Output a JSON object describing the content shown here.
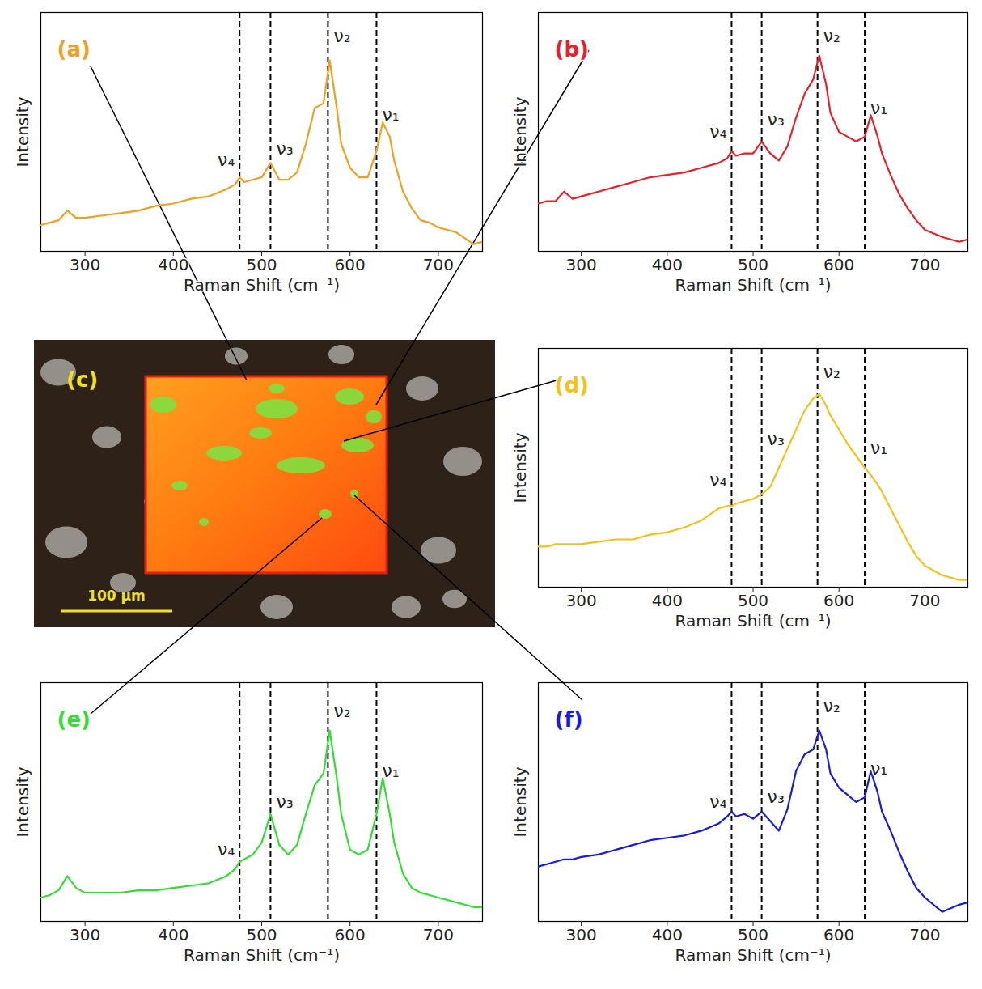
{
  "chart_data": [
    {
      "type": "line",
      "title": "(a)",
      "color": "#f0a020",
      "x_label": "Raman Shift (cm⁻¹)",
      "y_label": "Intensity",
      "xlim": [
        250,
        750
      ],
      "xticks": [
        300,
        400,
        500,
        600,
        700
      ],
      "ylim": [
        0,
        1
      ],
      "yticks": [],
      "tick_labels": "x",
      "x": [
        250,
        260,
        270,
        280,
        290,
        300,
        320,
        340,
        360,
        380,
        400,
        420,
        440,
        460,
        470,
        475,
        480,
        490,
        500,
        510,
        520,
        530,
        540,
        550,
        560,
        570,
        577,
        585,
        590,
        600,
        610,
        620,
        630,
        637,
        645,
        650,
        660,
        670,
        680,
        690,
        700,
        720,
        740,
        750
      ],
      "values": [
        0.11,
        0.12,
        0.13,
        0.17,
        0.14,
        0.14,
        0.15,
        0.16,
        0.17,
        0.19,
        0.2,
        0.22,
        0.23,
        0.26,
        0.28,
        0.31,
        0.29,
        0.3,
        0.31,
        0.37,
        0.3,
        0.3,
        0.33,
        0.45,
        0.6,
        0.62,
        0.8,
        0.6,
        0.45,
        0.35,
        0.31,
        0.31,
        0.42,
        0.54,
        0.48,
        0.38,
        0.25,
        0.18,
        0.13,
        0.12,
        0.1,
        0.08,
        0.03,
        0.04
      ],
      "annotations": [
        {
          "x": 475,
          "y": 0.38,
          "label": "ν₄"
        },
        {
          "x": 510,
          "y": 0.43,
          "label": "ν₃"
        },
        {
          "x": 575,
          "y": 0.9,
          "label": "ν₂"
        },
        {
          "x": 630,
          "y": 0.57,
          "label": "ν₁"
        }
      ]
    },
    {
      "type": "line",
      "title": "(b)",
      "color": "#e8202a",
      "x_label": "Raman Shift (cm⁻¹)",
      "y_label": "Intensity",
      "xlim": [
        250,
        750
      ],
      "xticks": [
        300,
        400,
        500,
        600,
        700
      ],
      "ylim": [
        0,
        1
      ],
      "yticks": [],
      "tick_labels": "x",
      "x": [
        250,
        260,
        270,
        280,
        290,
        300,
        320,
        340,
        360,
        380,
        400,
        420,
        440,
        460,
        470,
        475,
        480,
        490,
        500,
        510,
        520,
        530,
        540,
        550,
        560,
        570,
        577,
        585,
        590,
        600,
        610,
        620,
        630,
        637,
        645,
        650,
        660,
        670,
        680,
        690,
        700,
        720,
        740,
        750
      ],
      "values": [
        0.2,
        0.21,
        0.21,
        0.25,
        0.22,
        0.23,
        0.25,
        0.27,
        0.29,
        0.31,
        0.32,
        0.33,
        0.35,
        0.37,
        0.39,
        0.42,
        0.4,
        0.41,
        0.41,
        0.46,
        0.41,
        0.38,
        0.44,
        0.56,
        0.66,
        0.72,
        0.82,
        0.7,
        0.58,
        0.5,
        0.48,
        0.46,
        0.48,
        0.57,
        0.48,
        0.41,
        0.32,
        0.24,
        0.18,
        0.13,
        0.09,
        0.06,
        0.04,
        0.05
      ],
      "annotations": [
        {
          "x": 475,
          "y": 0.5,
          "label": "ν₄"
        },
        {
          "x": 510,
          "y": 0.55,
          "label": "ν₃"
        },
        {
          "x": 575,
          "y": 0.9,
          "label": "ν₂"
        },
        {
          "x": 630,
          "y": 0.6,
          "label": "ν₁"
        }
      ]
    },
    {
      "type": "image",
      "title": "(c)",
      "annotations": [
        "100 µm"
      ]
    },
    {
      "type": "line",
      "title": "(d)",
      "color": "#f2c21a",
      "x_label": "Raman Shift (cm⁻¹)",
      "y_label": "Intensity",
      "xlim": [
        250,
        750
      ],
      "xticks": [
        300,
        400,
        500,
        600,
        700
      ],
      "ylim": [
        0,
        1
      ],
      "yticks": [],
      "tick_labels": "x",
      "x": [
        250,
        260,
        270,
        280,
        290,
        300,
        320,
        340,
        360,
        380,
        400,
        420,
        440,
        460,
        470,
        475,
        480,
        490,
        500,
        510,
        520,
        530,
        540,
        550,
        560,
        570,
        577,
        585,
        590,
        600,
        610,
        620,
        630,
        637,
        645,
        650,
        660,
        670,
        680,
        690,
        700,
        720,
        740,
        750
      ],
      "values": [
        0.17,
        0.17,
        0.18,
        0.18,
        0.18,
        0.18,
        0.19,
        0.2,
        0.2,
        0.22,
        0.23,
        0.25,
        0.28,
        0.33,
        0.34,
        0.34,
        0.35,
        0.36,
        0.37,
        0.39,
        0.42,
        0.5,
        0.58,
        0.66,
        0.74,
        0.79,
        0.81,
        0.76,
        0.72,
        0.66,
        0.6,
        0.55,
        0.5,
        0.47,
        0.43,
        0.4,
        0.33,
        0.26,
        0.19,
        0.13,
        0.09,
        0.05,
        0.03,
        0.03
      ],
      "annotations": [
        {
          "x": 475,
          "y": 0.45,
          "label": "ν₄"
        },
        {
          "x": 510,
          "y": 0.62,
          "label": "ν₃"
        },
        {
          "x": 575,
          "y": 0.9,
          "label": "ν₂"
        },
        {
          "x": 630,
          "y": 0.58,
          "label": "ν₁"
        }
      ]
    },
    {
      "type": "line",
      "title": "(e)",
      "color": "#33dd33",
      "x_label": "Raman Shift (cm⁻¹)",
      "y_label": "Intensity",
      "xlim": [
        250,
        750
      ],
      "xticks": [
        300,
        400,
        500,
        600,
        700
      ],
      "ylim": [
        0,
        1
      ],
      "yticks": [],
      "tick_labels": "x",
      "x": [
        250,
        260,
        270,
        280,
        290,
        300,
        320,
        340,
        360,
        380,
        400,
        420,
        440,
        460,
        470,
        475,
        480,
        490,
        500,
        510,
        520,
        530,
        540,
        550,
        560,
        570,
        577,
        585,
        590,
        600,
        610,
        620,
        630,
        637,
        645,
        650,
        660,
        670,
        680,
        690,
        700,
        720,
        740,
        750
      ],
      "values": [
        0.1,
        0.11,
        0.13,
        0.19,
        0.14,
        0.12,
        0.12,
        0.12,
        0.13,
        0.13,
        0.14,
        0.15,
        0.16,
        0.19,
        0.22,
        0.25,
        0.26,
        0.28,
        0.33,
        0.45,
        0.32,
        0.28,
        0.32,
        0.45,
        0.57,
        0.62,
        0.8,
        0.6,
        0.45,
        0.3,
        0.28,
        0.3,
        0.45,
        0.6,
        0.45,
        0.33,
        0.2,
        0.14,
        0.12,
        0.11,
        0.1,
        0.08,
        0.06,
        0.06
      ],
      "annotations": [
        {
          "x": 475,
          "y": 0.3,
          "label": "ν₄"
        },
        {
          "x": 510,
          "y": 0.5,
          "label": "ν₃"
        },
        {
          "x": 575,
          "y": 0.88,
          "label": "ν₂"
        },
        {
          "x": 630,
          "y": 0.63,
          "label": "ν₁"
        }
      ]
    },
    {
      "type": "line",
      "title": "(f)",
      "color": "#1a1adf",
      "x_label": "Raman Shift (cm⁻¹)",
      "y_label": "Intensity",
      "xlim": [
        250,
        750
      ],
      "xticks": [
        300,
        400,
        500,
        600,
        700
      ],
      "ylim": [
        0,
        1
      ],
      "yticks": [],
      "tick_labels": "x",
      "x": [
        250,
        260,
        270,
        280,
        290,
        300,
        320,
        340,
        360,
        380,
        400,
        420,
        440,
        460,
        470,
        475,
        480,
        490,
        500,
        510,
        520,
        530,
        540,
        550,
        560,
        570,
        577,
        585,
        590,
        600,
        610,
        620,
        630,
        637,
        645,
        650,
        660,
        670,
        680,
        690,
        700,
        720,
        740,
        750
      ],
      "values": [
        0.23,
        0.24,
        0.25,
        0.26,
        0.26,
        0.27,
        0.28,
        0.3,
        0.32,
        0.34,
        0.35,
        0.36,
        0.38,
        0.41,
        0.44,
        0.46,
        0.44,
        0.45,
        0.43,
        0.46,
        0.42,
        0.38,
        0.47,
        0.63,
        0.7,
        0.72,
        0.8,
        0.72,
        0.62,
        0.56,
        0.53,
        0.5,
        0.52,
        0.63,
        0.54,
        0.46,
        0.38,
        0.29,
        0.21,
        0.14,
        0.1,
        0.04,
        0.07,
        0.08
      ],
      "annotations": [
        {
          "x": 475,
          "y": 0.5,
          "label": "ν₄"
        },
        {
          "x": 510,
          "y": 0.52,
          "label": "ν₃"
        },
        {
          "x": 575,
          "y": 0.9,
          "label": "ν₂"
        },
        {
          "x": 630,
          "y": 0.64,
          "label": "ν₁"
        }
      ]
    }
  ]
}
